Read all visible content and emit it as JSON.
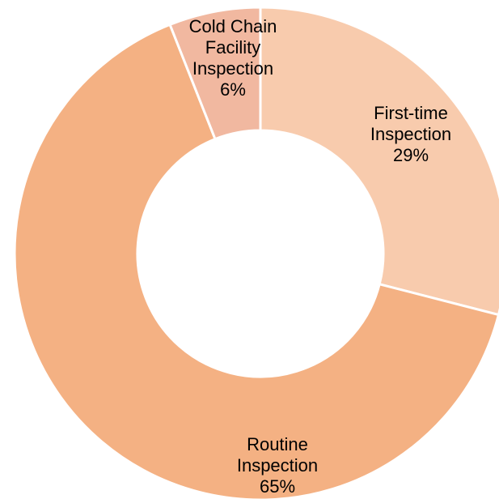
{
  "chart_data": {
    "type": "donut",
    "categories": [
      "First-time\nInspection",
      "Routine\nInspection",
      "Cold Chain\nFacility\nInspection"
    ],
    "values": [
      29,
      65,
      6
    ],
    "value_labels": [
      "29%",
      "65%",
      "6%"
    ],
    "colors": [
      "#f8cbad",
      "#f4b183",
      "#f1b8a0"
    ]
  }
}
